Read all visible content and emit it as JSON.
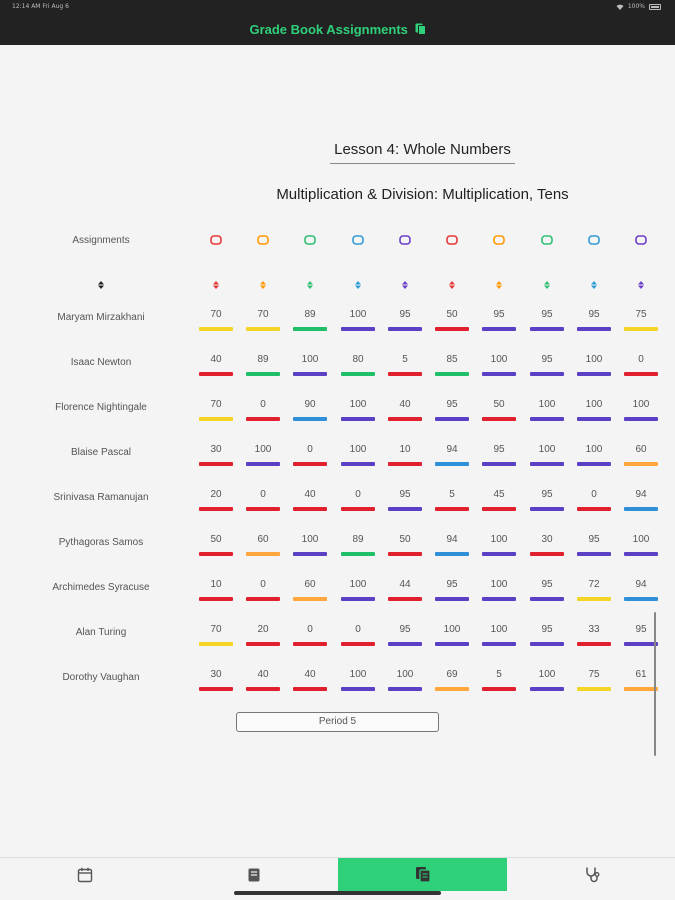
{
  "status": {
    "time": "12:14 AM",
    "date": "Fri Aug 6",
    "battery": "100%"
  },
  "header": {
    "title": "Grade Book Assignments"
  },
  "lesson": {
    "title": "Lesson 4: Whole Numbers",
    "subtitle": "Multiplication & Division: Multiplication, Tens"
  },
  "grid": {
    "assignments_label": "Assignments",
    "assignment_icons": [
      {
        "name": "runner-icon",
        "color": "#e53935"
      },
      {
        "name": "chat-icon",
        "color": "#ff9800"
      },
      {
        "name": "tent-icon",
        "color": "#2fbf71"
      },
      {
        "name": "fish-icon",
        "color": "#2f9bd6"
      },
      {
        "name": "target-icon",
        "color": "#6a3fc7"
      },
      {
        "name": "ticket-icon",
        "color": "#e53935"
      },
      {
        "name": "dumbbell-icon",
        "color": "#ff9800"
      },
      {
        "name": "goal-icon",
        "color": "#2fbf71"
      },
      {
        "name": "dome-icon",
        "color": "#2f9bd6"
      },
      {
        "name": "gamepad-icon",
        "color": "#6a3fc7"
      }
    ],
    "name_sort_icon": {
      "name": "sort-icon",
      "color": "#222222"
    },
    "colors": {
      "red": "#e0202c",
      "orange": "#ffa63d",
      "green": "#1fbf6a",
      "blue": "#2f8fd8",
      "purple": "#5b3fc4",
      "yellow": "#f5d426"
    },
    "students": [
      {
        "name": "Maryam Mirzakhani",
        "scores": [
          {
            "v": "70",
            "c": "yellow"
          },
          {
            "v": "70",
            "c": "yellow"
          },
          {
            "v": "89",
            "c": "green"
          },
          {
            "v": "100",
            "c": "purple"
          },
          {
            "v": "95",
            "c": "purple"
          },
          {
            "v": "50",
            "c": "red"
          },
          {
            "v": "95",
            "c": "purple"
          },
          {
            "v": "95",
            "c": "purple"
          },
          {
            "v": "95",
            "c": "purple"
          },
          {
            "v": "75",
            "c": "yellow"
          }
        ]
      },
      {
        "name": "Isaac Newton",
        "scores": [
          {
            "v": "40",
            "c": "red"
          },
          {
            "v": "89",
            "c": "green"
          },
          {
            "v": "100",
            "c": "purple"
          },
          {
            "v": "80",
            "c": "green"
          },
          {
            "v": "5",
            "c": "red"
          },
          {
            "v": "85",
            "c": "green"
          },
          {
            "v": "100",
            "c": "purple"
          },
          {
            "v": "95",
            "c": "purple"
          },
          {
            "v": "100",
            "c": "purple"
          },
          {
            "v": "0",
            "c": "red"
          }
        ]
      },
      {
        "name": "Florence Nightingale",
        "scores": [
          {
            "v": "70",
            "c": "yellow"
          },
          {
            "v": "0",
            "c": "red"
          },
          {
            "v": "90",
            "c": "blue"
          },
          {
            "v": "100",
            "c": "purple"
          },
          {
            "v": "40",
            "c": "red"
          },
          {
            "v": "95",
            "c": "purple"
          },
          {
            "v": "50",
            "c": "red"
          },
          {
            "v": "100",
            "c": "purple"
          },
          {
            "v": "100",
            "c": "purple"
          },
          {
            "v": "100",
            "c": "purple"
          }
        ]
      },
      {
        "name": "Blaise Pascal",
        "scores": [
          {
            "v": "30",
            "c": "red"
          },
          {
            "v": "100",
            "c": "purple"
          },
          {
            "v": "0",
            "c": "red"
          },
          {
            "v": "100",
            "c": "purple"
          },
          {
            "v": "10",
            "c": "red"
          },
          {
            "v": "94",
            "c": "blue"
          },
          {
            "v": "95",
            "c": "purple"
          },
          {
            "v": "100",
            "c": "purple"
          },
          {
            "v": "100",
            "c": "purple"
          },
          {
            "v": "60",
            "c": "orange"
          }
        ]
      },
      {
        "name": "Srinivasa Ramanujan",
        "scores": [
          {
            "v": "20",
            "c": "red"
          },
          {
            "v": "0",
            "c": "red"
          },
          {
            "v": "40",
            "c": "red"
          },
          {
            "v": "0",
            "c": "red"
          },
          {
            "v": "95",
            "c": "purple"
          },
          {
            "v": "5",
            "c": "red"
          },
          {
            "v": "45",
            "c": "red"
          },
          {
            "v": "95",
            "c": "purple"
          },
          {
            "v": "0",
            "c": "red"
          },
          {
            "v": "94",
            "c": "blue"
          }
        ]
      },
      {
        "name": "Pythagoras Samos",
        "scores": [
          {
            "v": "50",
            "c": "red"
          },
          {
            "v": "60",
            "c": "orange"
          },
          {
            "v": "100",
            "c": "purple"
          },
          {
            "v": "89",
            "c": "green"
          },
          {
            "v": "50",
            "c": "red"
          },
          {
            "v": "94",
            "c": "blue"
          },
          {
            "v": "100",
            "c": "purple"
          },
          {
            "v": "30",
            "c": "red"
          },
          {
            "v": "95",
            "c": "purple"
          },
          {
            "v": "100",
            "c": "purple"
          }
        ]
      },
      {
        "name": "Archimedes Syracuse",
        "scores": [
          {
            "v": "10",
            "c": "red"
          },
          {
            "v": "0",
            "c": "red"
          },
          {
            "v": "60",
            "c": "orange"
          },
          {
            "v": "100",
            "c": "purple"
          },
          {
            "v": "44",
            "c": "red"
          },
          {
            "v": "95",
            "c": "purple"
          },
          {
            "v": "100",
            "c": "purple"
          },
          {
            "v": "95",
            "c": "purple"
          },
          {
            "v": "72",
            "c": "yellow"
          },
          {
            "v": "94",
            "c": "blue"
          }
        ]
      },
      {
        "name": "Alan Turing",
        "scores": [
          {
            "v": "70",
            "c": "yellow"
          },
          {
            "v": "20",
            "c": "red"
          },
          {
            "v": "0",
            "c": "red"
          },
          {
            "v": "0",
            "c": "red"
          },
          {
            "v": "95",
            "c": "purple"
          },
          {
            "v": "100",
            "c": "purple"
          },
          {
            "v": "100",
            "c": "purple"
          },
          {
            "v": "95",
            "c": "purple"
          },
          {
            "v": "33",
            "c": "red"
          },
          {
            "v": "95",
            "c": "purple"
          }
        ]
      },
      {
        "name": "Dorothy Vaughan",
        "scores": [
          {
            "v": "30",
            "c": "red"
          },
          {
            "v": "40",
            "c": "red"
          },
          {
            "v": "40",
            "c": "red"
          },
          {
            "v": "100",
            "c": "purple"
          },
          {
            "v": "100",
            "c": "purple"
          },
          {
            "v": "69",
            "c": "orange"
          },
          {
            "v": "5",
            "c": "red"
          },
          {
            "v": "100",
            "c": "purple"
          },
          {
            "v": "75",
            "c": "yellow"
          },
          {
            "v": "61",
            "c": "orange"
          }
        ]
      }
    ]
  },
  "period_button": {
    "label": "Period 5"
  },
  "tabs": [
    {
      "name": "calendar-icon",
      "active": false
    },
    {
      "name": "book-icon",
      "active": false
    },
    {
      "name": "clipboard-copy-icon",
      "active": true
    },
    {
      "name": "stethoscope-icon",
      "active": false
    }
  ]
}
